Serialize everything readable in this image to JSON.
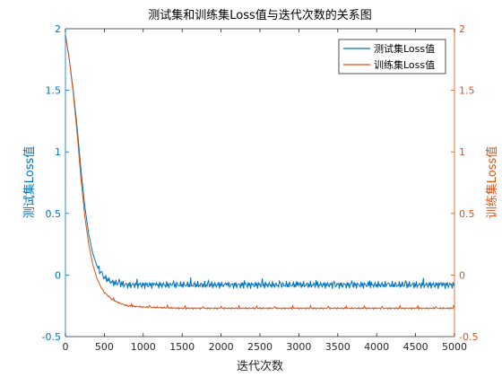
{
  "chart_data": {
    "type": "line",
    "title": "测试集和训练集Loss值与迭代次数的关系图",
    "xlabel": "迭代次数",
    "ylabel_left": "测试集Loss值",
    "ylabel_right": "训练集Loss值",
    "xlim": [
      0,
      5000
    ],
    "ylim_left": [
      -0.5,
      2
    ],
    "ylim_right": [
      -0.5,
      2
    ],
    "x_ticks": [
      "0",
      "500",
      "1000",
      "1500",
      "2000",
      "2500",
      "3000",
      "3500",
      "4000",
      "4500",
      "5000"
    ],
    "y_ticks_left": [
      "-0.5",
      "0",
      "0.5",
      "1",
      "1.5",
      "2"
    ],
    "y_ticks_right": [
      "-0.5",
      "0",
      "0.5",
      "1",
      "1.5",
      "2"
    ],
    "legend_position": "top-right",
    "grid": false,
    "series": [
      {
        "name": "测试集Loss值",
        "axis": "left",
        "color": "#0072BD",
        "x": [
          0,
          50,
          100,
          150,
          200,
          250,
          300,
          350,
          400,
          450,
          500,
          600,
          700,
          800,
          1000,
          1500,
          2000,
          2500,
          3000,
          3500,
          4000,
          4500,
          5000
        ],
        "y": [
          1.95,
          1.75,
          1.5,
          1.2,
          0.85,
          0.55,
          0.33,
          0.18,
          0.08,
          0.02,
          -0.02,
          -0.06,
          -0.07,
          -0.08,
          -0.08,
          -0.08,
          -0.08,
          -0.08,
          -0.08,
          -0.08,
          -0.08,
          -0.08,
          -0.08
        ]
      },
      {
        "name": "训练集Loss值",
        "axis": "right",
        "color": "#D95319",
        "x": [
          0,
          50,
          100,
          150,
          200,
          250,
          300,
          350,
          400,
          450,
          500,
          600,
          700,
          800,
          1000,
          1500,
          2000,
          2500,
          3000,
          3500,
          4000,
          4500,
          5000
        ],
        "y": [
          1.95,
          1.75,
          1.48,
          1.15,
          0.78,
          0.47,
          0.25,
          0.09,
          -0.02,
          -0.09,
          -0.14,
          -0.2,
          -0.23,
          -0.25,
          -0.26,
          -0.27,
          -0.27,
          -0.27,
          -0.27,
          -0.27,
          -0.27,
          -0.27,
          -0.27
        ]
      }
    ]
  }
}
